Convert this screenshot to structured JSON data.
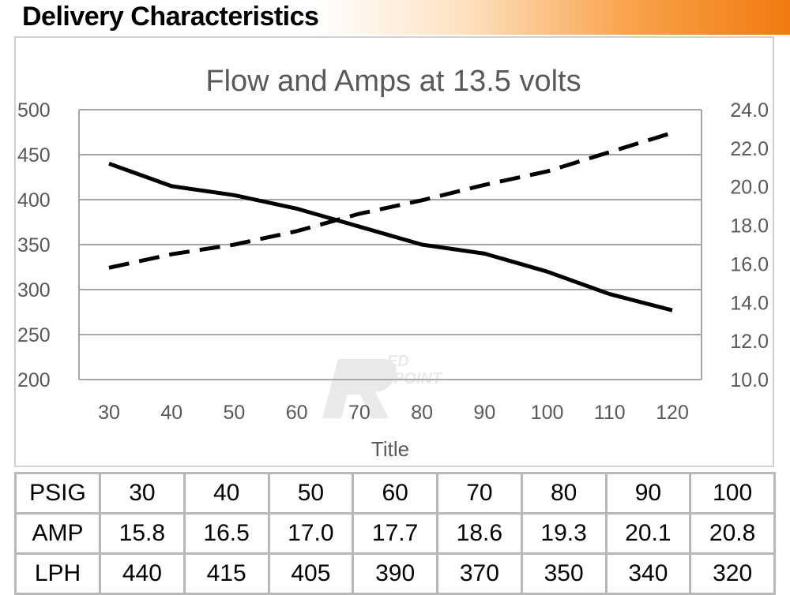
{
  "header": {
    "title": "Delivery Characteristics"
  },
  "colors": {
    "header_accent": "#f07a10",
    "line": "#000000",
    "grid": "#a6a6a6",
    "text": "#595959"
  },
  "watermark_icon": "redpoint-logo-watermark",
  "chart_data": {
    "type": "line",
    "title": "Flow and Amps at 13.5 volts",
    "xlabel": "Title",
    "ylabel": "",
    "y2label": "",
    "x": [
      30,
      40,
      50,
      60,
      70,
      80,
      90,
      100,
      110,
      120
    ],
    "x_tick_labels": [
      "30",
      "40",
      "50",
      "60",
      "70",
      "80",
      "90",
      "100",
      "110",
      "120"
    ],
    "ylim": [
      200,
      500
    ],
    "y_ticks": [
      "200",
      "250",
      "300",
      "350",
      "400",
      "450",
      "500"
    ],
    "y2lim": [
      10.0,
      24.0
    ],
    "y2_ticks": [
      "10.0",
      "12.0",
      "14.0",
      "16.0",
      "18.0",
      "20.0",
      "22.0",
      "24.0"
    ],
    "grid": true,
    "legend": "none",
    "series": [
      {
        "style": "solid",
        "axis": "left",
        "values": [
          440,
          415,
          405,
          390,
          370,
          350,
          340,
          320,
          295,
          277
        ]
      },
      {
        "style": "dashed",
        "axis": "right",
        "values": [
          15.8,
          16.5,
          17.0,
          17.7,
          18.6,
          19.3,
          20.1,
          20.8,
          21.8,
          22.8
        ]
      }
    ]
  },
  "table": {
    "rows": [
      {
        "label": "PSIG",
        "values": [
          "30",
          "40",
          "50",
          "60",
          "70",
          "80",
          "90",
          "100"
        ]
      },
      {
        "label": "AMP",
        "values": [
          "15.8",
          "16.5",
          "17.0",
          "17.7",
          "18.6",
          "19.3",
          "20.1",
          "20.8"
        ]
      },
      {
        "label": "LPH",
        "values": [
          "440",
          "415",
          "405",
          "390",
          "370",
          "350",
          "340",
          "320"
        ]
      }
    ]
  }
}
